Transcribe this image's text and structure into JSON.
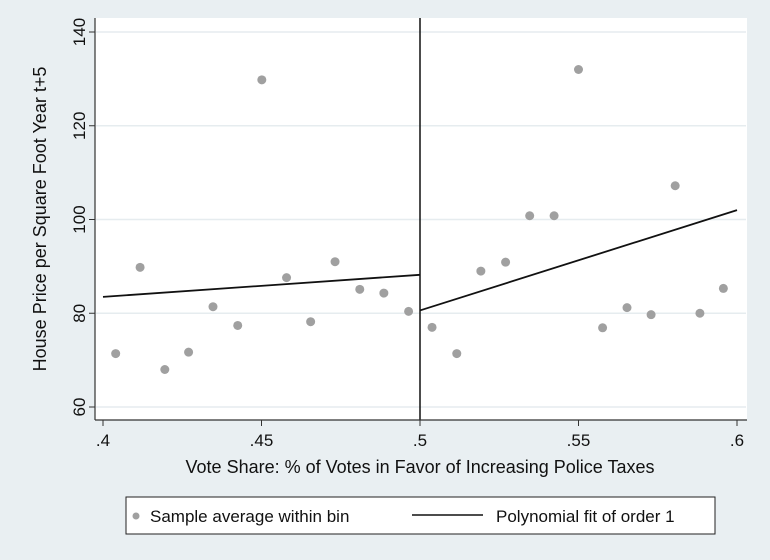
{
  "chart_data": {
    "type": "scatter",
    "title": "",
    "xlabel": "Vote Share: % of Votes in Favor of Increasing Police Taxes",
    "ylabel": "House Price per Square Foot Year t+5",
    "xlim": [
      0.4,
      0.6
    ],
    "ylim": [
      60,
      140
    ],
    "x_ticks": [
      0.4,
      0.45,
      0.5,
      0.55,
      0.6
    ],
    "x_tick_labels": [
      ".4",
      ".45",
      ".5",
      ".55",
      ".6"
    ],
    "y_ticks": [
      60,
      80,
      100,
      120,
      140
    ],
    "y_tick_labels": [
      "60",
      "80",
      "100",
      "120",
      "140"
    ],
    "grid": "horizontal",
    "cutoff": 0.5,
    "legend_position": "bottom",
    "series": [
      {
        "name": "Sample average within bin",
        "type": "scatter",
        "color": "#a0a0a0",
        "x": [
          0.404,
          0.4117,
          0.4195,
          0.427,
          0.4347,
          0.4425,
          0.4501,
          0.4579,
          0.4655,
          0.4732,
          0.481,
          0.4886,
          0.4964,
          0.5038,
          0.5116,
          0.5192,
          0.527,
          0.5346,
          0.5423,
          0.55,
          0.5576,
          0.5653,
          0.5729,
          0.5805,
          0.5883,
          0.5957
        ],
        "y": [
          71.4,
          89.8,
          68.0,
          71.7,
          81.4,
          77.4,
          129.8,
          87.6,
          78.2,
          91.0,
          85.1,
          84.3,
          80.4,
          77.0,
          71.4,
          89.0,
          90.9,
          100.8,
          100.8,
          132.0,
          76.9,
          81.2,
          79.7,
          107.2,
          80.0,
          85.3
        ]
      },
      {
        "name": "Polynomial fit of order 1",
        "type": "line",
        "color": "#111111",
        "segments": [
          {
            "x": [
              0.4,
              0.5
            ],
            "y": [
              83.5,
              88.2
            ]
          },
          {
            "x": [
              0.5,
              0.6
            ],
            "y": [
              80.6,
              102.0
            ]
          }
        ]
      }
    ]
  }
}
